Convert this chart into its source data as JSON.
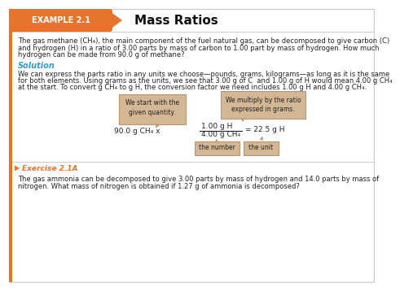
{
  "background_color": "#ffffff",
  "border_color": "#cccccc",
  "left_bar_color": "#e8732a",
  "header_bg": "#e8732a",
  "header_text": "EXAMPLE 2.1",
  "header_text_color": "#ffffff",
  "title_text": "Mass Ratios",
  "title_color": "#111111",
  "solution_color": "#3399cc",
  "exercise_color": "#e8732a",
  "callout_bg": "#d4b896",
  "callout_border": "#b8956a",
  "body_text_color": "#222222",
  "para1_line1": "The gas methane (CH₄), the main component of the fuel natural gas, can be decomposed to give carbon (C)",
  "para1_line2": "and hydrogen (H) in a ratio of 3.00 parts by mass of carbon to 1.00 part by mass of hydrogen. How much",
  "para1_line3": "hydrogen can be made from 90.0 g of methane?",
  "solution_label": "Solution",
  "para2_line1": "We can express the parts ratio in any units we choose—pounds, grams, kilograms—as long as it is the same",
  "para2_line2": "for both elements. Using grams as the units, we see that 3.00 g of C  and 1.00 g of H would mean 4.00 g CH₄",
  "para2_line3": "at the start. To convert g CH₄ to g H, the conversion factor we need includes 1.00 g H and 4.00 g CH₄.",
  "callout1_line1": "We start with the",
  "callout1_line2": "given quantity.",
  "callout2_line1": "We multiply by the ratio",
  "callout2_line2": "expressed in grams.",
  "eq_left": "90.0 g CH₄ x",
  "eq_num": "1.00 g H",
  "eq_den": "4.00 g CH₄",
  "eq_result": "= 22.5 g H",
  "label1": "the number",
  "label2": "the unit",
  "exercise_label": "Exercise 2.1A",
  "para3_line1": "The gas ammonia can be decomposed to give 3.00 parts by mass of hydrogen and 14.0 parts by mass of",
  "para3_line2": "nitrogen. What mass of nitrogen is obtained if 1.27 g of ammonia is decomposed?"
}
